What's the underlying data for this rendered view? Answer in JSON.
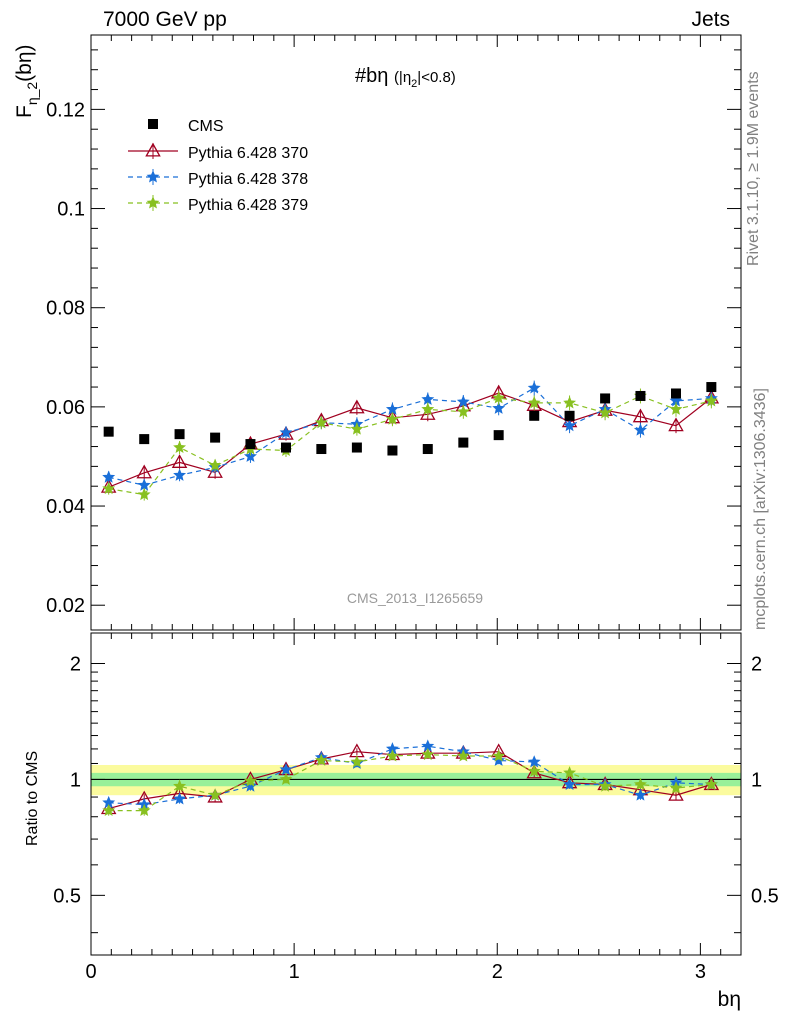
{
  "header": {
    "top_left": "7000 GeV pp",
    "top_right": "Jets",
    "side_rivet": "Rivet 3.1.10, ≥ 1.9M events",
    "side_mcplots": "mcplots.cern.ch [arXiv:1306.3436]"
  },
  "chart_data": [
    {
      "type": "scatter",
      "panel": "main",
      "title": "#bη (|η₂|<0.8)",
      "title_main": "#bη",
      "title_sub": "(|η",
      "title_sub_index": "2",
      "title_sub_tail": "|<0.8)",
      "watermark": "CMS_2013_I1265659",
      "ylabel": "Fη_2(bη)",
      "ylabel_main": "F",
      "ylabel_sub": "η_2",
      "ylabel_tail": "(bη)",
      "xlabel": "bη",
      "xlim": [
        0,
        3.2
      ],
      "ylim": [
        0.015,
        0.135
      ],
      "yticks": [
        0.02,
        0.04,
        0.06,
        0.08,
        0.1,
        0.12
      ],
      "ytick_labels": [
        "0.02",
        "0.04",
        "0.06",
        "0.08",
        "0.1",
        "0.12"
      ],
      "legend_position": "top-left",
      "x": [
        0.087,
        0.262,
        0.436,
        0.611,
        0.785,
        0.96,
        1.134,
        1.309,
        1.484,
        1.658,
        1.833,
        2.007,
        2.182,
        2.356,
        2.531,
        2.705,
        2.88,
        3.054
      ],
      "series": [
        {
          "name": "CMS",
          "color": "#000000",
          "marker": "square",
          "values": [
            0.055,
            0.0535,
            0.0545,
            0.0538,
            0.0525,
            0.0518,
            0.0515,
            0.0518,
            0.0512,
            0.0515,
            0.0528,
            0.0543,
            0.0582,
            0.0582,
            0.0617,
            0.0622,
            0.0627,
            0.064
          ],
          "errors": [
            0.0006,
            0.0006,
            0.0006,
            0.0006,
            0.0006,
            0.0006,
            0.0006,
            0.0006,
            0.0006,
            0.0006,
            0.0006,
            0.0006,
            0.0006,
            0.0006,
            0.0006,
            0.0006,
            0.0006,
            0.0006
          ]
        },
        {
          "name": "Pythia 6.428 370",
          "color": "#a00020",
          "marker": "triangle",
          "dash": "solid",
          "values": [
            0.0438,
            0.0467,
            0.0488,
            0.0468,
            0.0525,
            0.0545,
            0.0572,
            0.0598,
            0.0578,
            0.0585,
            0.0602,
            0.0628,
            0.0603,
            0.057,
            0.0593,
            0.058,
            0.0562,
            0.0618
          ],
          "errors": [
            0.0012,
            0.0013,
            0.0013,
            0.0013,
            0.0013,
            0.0013,
            0.0014,
            0.0014,
            0.0014,
            0.0014,
            0.0015,
            0.0015,
            0.0015,
            0.0015,
            0.0015,
            0.0015,
            0.0015,
            0.0015
          ]
        },
        {
          "name": "Pythia 6.428 378",
          "color": "#1a6fd8",
          "marker": "star",
          "dash": "dashed",
          "values": [
            0.0458,
            0.0442,
            0.0462,
            0.0478,
            0.05,
            0.0548,
            0.0568,
            0.0565,
            0.0595,
            0.0615,
            0.061,
            0.0597,
            0.0638,
            0.0562,
            0.0595,
            0.0553,
            0.0612,
            0.0617
          ],
          "errors": [
            0.0012,
            0.0012,
            0.0012,
            0.0012,
            0.0013,
            0.0013,
            0.0013,
            0.0014,
            0.0014,
            0.0014,
            0.0014,
            0.0014,
            0.0015,
            0.0015,
            0.0015,
            0.0015,
            0.0015,
            0.0015
          ]
        },
        {
          "name": "Pythia 6.428 379",
          "color": "#88c020",
          "marker": "star",
          "dash": "dashed",
          "values": [
            0.0435,
            0.0423,
            0.0518,
            0.0482,
            0.0515,
            0.0512,
            0.0568,
            0.0555,
            0.0575,
            0.0595,
            0.059,
            0.0618,
            0.0608,
            0.0608,
            0.0588,
            0.0622,
            0.0595,
            0.0612
          ],
          "errors": [
            0.0012,
            0.0012,
            0.0013,
            0.0012,
            0.0013,
            0.0013,
            0.0013,
            0.0013,
            0.0014,
            0.0014,
            0.0014,
            0.0014,
            0.0015,
            0.0015,
            0.0015,
            0.0015,
            0.0015,
            0.0015
          ]
        }
      ]
    },
    {
      "type": "scatter",
      "panel": "ratio",
      "ylabel": "Ratio to CMS",
      "xlabel": "bη",
      "xlim": [
        0,
        3.2
      ],
      "ylim": [
        0.35,
        2.4
      ],
      "log_y": true,
      "yticks": [
        0.5,
        1,
        2
      ],
      "ytick_labels": [
        "0.5",
        "1",
        "2"
      ],
      "xticks": [
        0,
        1,
        2,
        3
      ],
      "xtick_labels": [
        "0",
        "1",
        "2",
        "3"
      ],
      "band_inner": 0.04,
      "band_outer": 0.09,
      "band_inner_color": "#99f099",
      "band_outer_color": "#fbfb9e",
      "x": [
        0.087,
        0.262,
        0.436,
        0.611,
        0.785,
        0.96,
        1.134,
        1.309,
        1.484,
        1.658,
        1.833,
        2.007,
        2.182,
        2.356,
        2.531,
        2.705,
        2.88,
        3.054
      ],
      "series": [
        {
          "name": "Pythia 6.428 370",
          "color": "#a00020",
          "values": [
            0.84,
            0.89,
            0.92,
            0.9,
            1.0,
            1.06,
            1.13,
            1.18,
            1.16,
            1.17,
            1.17,
            1.18,
            1.04,
            0.98,
            0.97,
            0.94,
            0.91,
            0.97
          ],
          "errors": [
            0.025,
            0.025,
            0.025,
            0.025,
            0.025,
            0.025,
            0.025,
            0.025,
            0.025,
            0.025,
            0.025,
            0.025,
            0.025,
            0.025,
            0.025,
            0.025,
            0.025,
            0.025
          ]
        },
        {
          "name": "Pythia 6.428 378",
          "color": "#1a6fd8",
          "values": [
            0.87,
            0.86,
            0.89,
            0.91,
            0.96,
            1.06,
            1.14,
            1.1,
            1.2,
            1.22,
            1.18,
            1.12,
            1.11,
            0.97,
            0.97,
            0.91,
            0.98,
            0.97
          ],
          "errors": [
            0.025,
            0.025,
            0.025,
            0.025,
            0.025,
            0.025,
            0.025,
            0.025,
            0.025,
            0.025,
            0.025,
            0.025,
            0.025,
            0.025,
            0.025,
            0.025,
            0.025,
            0.025
          ]
        },
        {
          "name": "Pythia 6.428 379",
          "color": "#88c020",
          "values": [
            0.83,
            0.83,
            0.96,
            0.91,
            0.99,
            1.0,
            1.12,
            1.11,
            1.15,
            1.16,
            1.15,
            1.15,
            1.05,
            1.04,
            0.96,
            0.97,
            0.95,
            0.97
          ],
          "errors": [
            0.025,
            0.025,
            0.025,
            0.025,
            0.025,
            0.025,
            0.025,
            0.025,
            0.025,
            0.025,
            0.025,
            0.025,
            0.025,
            0.025,
            0.025,
            0.025,
            0.025,
            0.025
          ]
        }
      ]
    }
  ]
}
